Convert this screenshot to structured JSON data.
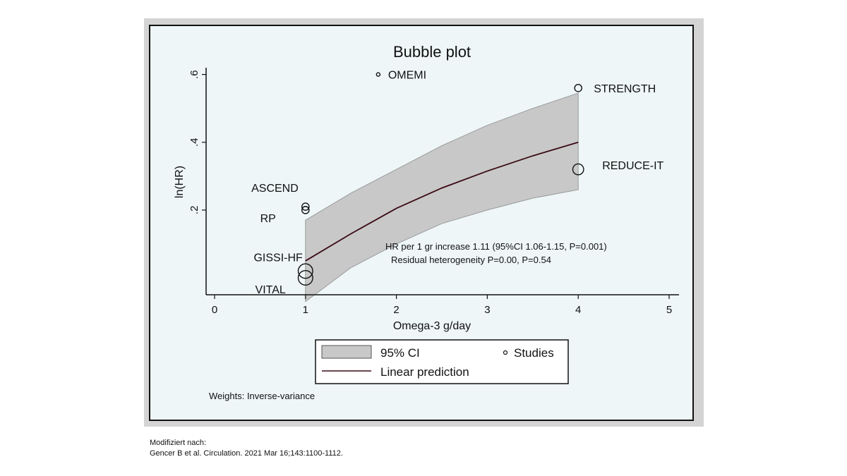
{
  "chart_data": {
    "type": "scatter",
    "title": "Bubble plot",
    "xlabel": "Omega-3 g/day",
    "ylabel": "ln(HR)",
    "xlim": [
      0,
      5
    ],
    "ylim": [
      -0.05,
      0.62
    ],
    "x_ticks": [
      0,
      1,
      2,
      3,
      4,
      5
    ],
    "y_ticks": [
      0.2,
      0.4,
      0.6
    ],
    "y_tick_labels": [
      ".2",
      ".4",
      ".6"
    ],
    "grid": false,
    "studies": [
      {
        "name": "OMEMI",
        "x": 1.8,
        "y": 0.6,
        "size": 1
      },
      {
        "name": "STRENGTH",
        "x": 4.0,
        "y": 0.56,
        "size": 2
      },
      {
        "name": "REDUCE-IT",
        "x": 4.0,
        "y": 0.32,
        "size": 3
      },
      {
        "name": "ASCEND",
        "x": 1.0,
        "y": 0.21,
        "size": 2
      },
      {
        "name": "RP",
        "x": 1.0,
        "y": 0.2,
        "size": 2
      },
      {
        "name": "GISSI-HF",
        "x": 1.0,
        "y": 0.02,
        "size": 4
      },
      {
        "name": "VITAL",
        "x": 1.0,
        "y": 0.0,
        "size": 4
      }
    ],
    "prediction": {
      "x": [
        1.0,
        1.5,
        2.0,
        2.5,
        3.0,
        3.5,
        4.0
      ],
      "y": [
        0.05,
        0.13,
        0.205,
        0.265,
        0.315,
        0.36,
        0.4
      ],
      "ci_lower": [
        -0.07,
        0.03,
        0.1,
        0.16,
        0.2,
        0.235,
        0.26
      ],
      "ci_upper": [
        0.17,
        0.25,
        0.32,
        0.39,
        0.45,
        0.5,
        0.545
      ]
    },
    "annotations": [
      "HR per 1 gr increase 1.11 (95%CI 1.06-1.15, P=0.001)",
      "Residual heterogeneity P=0.00, P=0.54"
    ],
    "legend": {
      "placement": "bottom",
      "ci_label": "95% CI",
      "studies_label": "Studies",
      "line_label": "Linear prediction"
    },
    "weights_note": "Weights: Inverse-variance",
    "colors": {
      "band": "#c8c8c8",
      "line": "#3a0a14",
      "plot_bg": "#eef6f8",
      "frame_bg": "#d4d4d4"
    }
  },
  "source": {
    "line1": "Modifiziert nach:",
    "line2": "Gencer B et al. Circulation. 2021 Mar 16;143:1100-1112."
  }
}
